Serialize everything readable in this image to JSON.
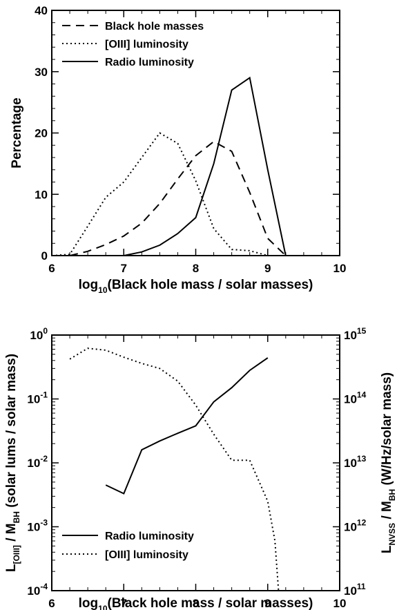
{
  "chart_data": [
    {
      "type": "line",
      "xlabel_prefix": "log",
      "xlabel_sub": "10",
      "xlabel_rest": "(Black hole mass / solar masses)",
      "ylabel": "Percentage",
      "xlim": [
        6,
        10
      ],
      "ylim": [
        0,
        40
      ],
      "xticks": [
        "6",
        "7",
        "8",
        "9",
        "10"
      ],
      "yticks": [
        "0",
        "10",
        "20",
        "30",
        "40"
      ],
      "legend_position": "top-left",
      "series": [
        {
          "name": "Black hole masses",
          "style": "dashed",
          "x": [
            6.25,
            6.5,
            6.75,
            7.0,
            7.25,
            7.5,
            7.75,
            8.0,
            8.25,
            8.5,
            8.75,
            9.0,
            9.25,
            9.5
          ],
          "y": [
            0.0,
            0.7,
            1.8,
            3.2,
            5.3,
            8.5,
            12.5,
            16.3,
            18.6,
            17.0,
            10.3,
            2.8,
            0.0,
            0.0
          ]
        },
        {
          "name": "[OIII] luminosity",
          "style": "dotted",
          "x": [
            6.0,
            6.25,
            6.5,
            6.75,
            7.0,
            7.25,
            7.5,
            7.75,
            8.0,
            8.25,
            8.5,
            8.75,
            9.0,
            9.25,
            9.5
          ],
          "y": [
            0.0,
            0.2,
            4.8,
            9.5,
            12.0,
            16.0,
            20.0,
            18.3,
            12.2,
            4.4,
            1.0,
            0.8,
            0.0,
            0.0,
            0.0
          ]
        },
        {
          "name": "Radio luminosity",
          "style": "solid",
          "x": [
            6.75,
            7.0,
            7.25,
            7.5,
            7.75,
            8.0,
            8.25,
            8.5,
            8.75,
            9.0,
            9.25
          ],
          "y": [
            0.0,
            0.0,
            0.6,
            1.7,
            3.6,
            6.2,
            15.0,
            27.0,
            29.0,
            14.0,
            0.0
          ]
        }
      ]
    },
    {
      "type": "line",
      "xlabel_prefix": "log",
      "xlabel_sub": "10",
      "xlabel_rest": "(Black hole mass / solar masses)",
      "ylabel_left_main": "L",
      "ylabel_left_sub1": "[OIII]",
      "ylabel_left_mid": " / M",
      "ylabel_left_sub2": "BH",
      "ylabel_left_rest": " (solar lums / solar mass)",
      "ylabel_right_main": "L",
      "ylabel_right_sub1": "NVSS",
      "ylabel_right_mid": " / M",
      "ylabel_right_sub2": "BH",
      "ylabel_right_rest": " (W/Hz/solar mass)",
      "xlim": [
        6,
        10
      ],
      "ylim_left_log": [
        -4,
        0
      ],
      "ylim_right_log": [
        11,
        15
      ],
      "xticks": [
        "6",
        "7",
        "8",
        "9",
        "10"
      ],
      "yticks_left": [
        {
          "base": "10",
          "exp": "-4"
        },
        {
          "base": "10",
          "exp": "-3"
        },
        {
          "base": "10",
          "exp": "-2"
        },
        {
          "base": "10",
          "exp": "-1"
        },
        {
          "base": "10",
          "exp": "0"
        }
      ],
      "yticks_right": [
        {
          "base": "10",
          "exp": "11"
        },
        {
          "base": "10",
          "exp": "12"
        },
        {
          "base": "10",
          "exp": "13"
        },
        {
          "base": "10",
          "exp": "14"
        },
        {
          "base": "10",
          "exp": "15"
        }
      ],
      "legend_position": "bottom-left",
      "series": [
        {
          "name": "Radio luminosity",
          "style": "solid",
          "axis": "right",
          "x": [
            6.75,
            7.0,
            7.25,
            7.5,
            7.75,
            8.0,
            8.25,
            8.5,
            8.75,
            9.0
          ],
          "y": [
            4500000000000.0,
            3300000000000.0,
            16000000000000.0,
            22000000000000.0,
            29000000000000.0,
            38000000000000.0,
            90000000000000.0,
            150000000000000.0,
            280000000000000.0,
            440000000000000.0
          ]
        },
        {
          "name": "[OIII] luminosity",
          "style": "dotted",
          "axis": "left",
          "x": [
            6.25,
            6.5,
            6.75,
            7.0,
            7.25,
            7.5,
            7.75,
            8.0,
            8.25,
            8.5,
            8.75,
            9.0,
            9.1,
            9.15
          ],
          "y": [
            0.42,
            0.62,
            0.58,
            0.45,
            0.36,
            0.3,
            0.19,
            0.08,
            0.028,
            0.011,
            0.011,
            0.0025,
            0.0006,
            0.0001
          ]
        }
      ]
    }
  ]
}
